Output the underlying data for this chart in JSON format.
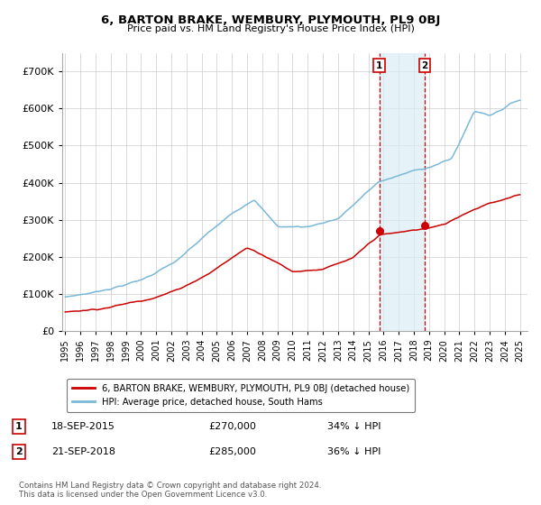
{
  "title": "6, BARTON BRAKE, WEMBURY, PLYMOUTH, PL9 0BJ",
  "subtitle": "Price paid vs. HM Land Registry's House Price Index (HPI)",
  "hpi_label": "HPI: Average price, detached house, South Hams",
  "property_label": "6, BARTON BRAKE, WEMBURY, PLYMOUTH, PL9 0BJ (detached house)",
  "hpi_color": "#7ab8d9",
  "property_color": "#cc0000",
  "marker_color": "#cc0000",
  "vline_color": "#cc0000",
  "shade_color": "#daeef7",
  "transaction1_date": "18-SEP-2015",
  "transaction1_price": "£270,000",
  "transaction1_hpi": "34% ↓ HPI",
  "transaction1_x": 2015.72,
  "transaction1_y": 270000,
  "transaction2_date": "21-SEP-2018",
  "transaction2_price": "£285,000",
  "transaction2_hpi": "36% ↓ HPI",
  "transaction2_x": 2018.72,
  "transaction2_y": 285000,
  "ylim_min": 0,
  "ylim_max": 750000,
  "yticks": [
    0,
    100000,
    200000,
    300000,
    400000,
    500000,
    600000,
    700000
  ],
  "ytick_labels": [
    "£0",
    "£100K",
    "£200K",
    "£300K",
    "£400K",
    "£500K",
    "£600K",
    "£700K"
  ],
  "xlim_min": 1994.8,
  "xlim_max": 2025.5,
  "background_color": "#ffffff",
  "grid_color": "#cccccc",
  "footer_text": "Contains HM Land Registry data © Crown copyright and database right 2024.\nThis data is licensed under the Open Government Licence v3.0."
}
